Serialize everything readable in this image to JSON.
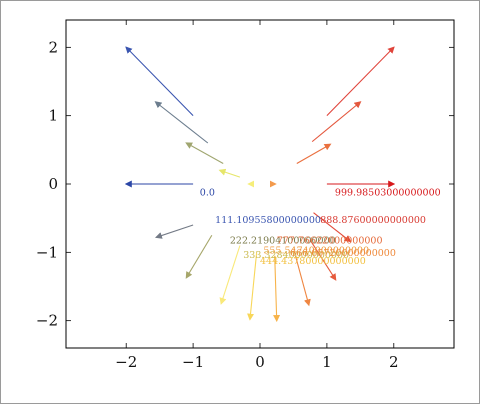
{
  "chart_data": {
    "type": "quiver",
    "title": "",
    "xlabel": "",
    "ylabel": "",
    "xlim": [
      -2.9,
      2.9
    ],
    "ylim": [
      -2.4,
      2.4
    ],
    "xticks": [
      {
        "v": -2,
        "label": "−2"
      },
      {
        "v": -1,
        "label": "−1"
      },
      {
        "v": 0,
        "label": "0"
      },
      {
        "v": 1,
        "label": "1"
      },
      {
        "v": 2,
        "label": "2"
      }
    ],
    "yticks": [
      {
        "v": 2,
        "label": "2"
      },
      {
        "v": 1,
        "label": "1"
      },
      {
        "v": 0,
        "label": "0"
      },
      {
        "v": -1,
        "label": "−1"
      },
      {
        "v": -2,
        "label": "−2"
      }
    ],
    "grid": false,
    "arrows": [
      {
        "x": 1.0,
        "y": 0.0,
        "u": 1.0,
        "v": 0.0,
        "color": "#d7191c"
      },
      {
        "x": 1.0,
        "y": 1.0,
        "u": 1.0,
        "v": 1.0,
        "color": "#e0443b"
      },
      {
        "x": 0.78,
        "y": 0.62,
        "u": 0.72,
        "v": 0.58,
        "color": "#e4573d"
      },
      {
        "x": 0.55,
        "y": 0.3,
        "u": 0.5,
        "v": 0.28,
        "color": "#ea703f"
      },
      {
        "x": 0.18,
        "y": 0.0,
        "u": 0.05,
        "v": 0.0,
        "color": "#f39a4c"
      },
      {
        "x": 0.8,
        "y": -0.42,
        "u": 0.55,
        "v": -0.42,
        "color": "#e34a3a"
      },
      {
        "x": 0.75,
        "y": -0.82,
        "u": 0.38,
        "v": -0.58,
        "color": "#e65a3c"
      },
      {
        "x": 0.53,
        "y": -1.05,
        "u": 0.2,
        "v": -0.72,
        "color": "#ef8641"
      },
      {
        "x": 0.22,
        "y": -1.05,
        "u": 0.03,
        "v": -0.95,
        "color": "#f7b34a"
      },
      {
        "x": -0.05,
        "y": -1.0,
        "u": -0.1,
        "v": -0.98,
        "color": "#f8d75a"
      },
      {
        "x": -0.3,
        "y": -0.9,
        "u": -0.28,
        "v": -0.85,
        "color": "#f9e97a"
      },
      {
        "x": -0.72,
        "y": -0.75,
        "u": -0.38,
        "v": -0.62,
        "color": "#a6a66a"
      },
      {
        "x": -1.0,
        "y": -0.6,
        "u": -0.55,
        "v": -0.18,
        "color": "#737a86"
      },
      {
        "x": -1.0,
        "y": 0.0,
        "u": -1.0,
        "v": 0.0,
        "color": "#2b46a6"
      },
      {
        "x": -1.0,
        "y": 1.0,
        "u": -1.0,
        "v": 1.0,
        "color": "#3a55b0"
      },
      {
        "x": -0.78,
        "y": 0.6,
        "u": -0.78,
        "v": 0.6,
        "color": "#6c7d8e"
      },
      {
        "x": -0.55,
        "y": 0.3,
        "u": -0.55,
        "v": 0.3,
        "color": "#a0a670"
      },
      {
        "x": -0.3,
        "y": 0.1,
        "u": -0.3,
        "v": 0.1,
        "color": "#e6e66a"
      },
      {
        "x": -0.12,
        "y": 0.0,
        "u": -0.05,
        "v": 0.0,
        "color": "#f6ee7a"
      }
    ],
    "data_labels": [
      {
        "x": -0.9,
        "y": -0.17,
        "text": "0.0",
        "color": "#2b46a6"
      },
      {
        "x": -0.67,
        "y": -0.57,
        "text": "111.10955800000000",
        "color": "#3a55b0"
      },
      {
        "x": -0.45,
        "y": -0.87,
        "text": "222.21904100000000",
        "color": "#7a7a4a"
      },
      {
        "x": -0.25,
        "y": -1.08,
        "text": "333.32840000000000",
        "color": "#c8b84a"
      },
      {
        "x": 0.0,
        "y": -1.17,
        "text": "444.43780000000000",
        "color": "#f2c040"
      },
      {
        "x": 0.05,
        "y": -1.02,
        "text": "555.54740000000000",
        "color": "#ef9a3c"
      },
      {
        "x": 0.45,
        "y": -1.05,
        "text": "666.65720000000000",
        "color": "#ef8a3c"
      },
      {
        "x": 0.25,
        "y": -0.87,
        "text": "777.76622000000000",
        "color": "#e56a3a"
      },
      {
        "x": 0.9,
        "y": -0.57,
        "text": "888.87600000000000",
        "color": "#d83a32"
      },
      {
        "x": 1.12,
        "y": -0.17,
        "text": "999.98503000000000",
        "color": "#d7191c"
      }
    ]
  }
}
